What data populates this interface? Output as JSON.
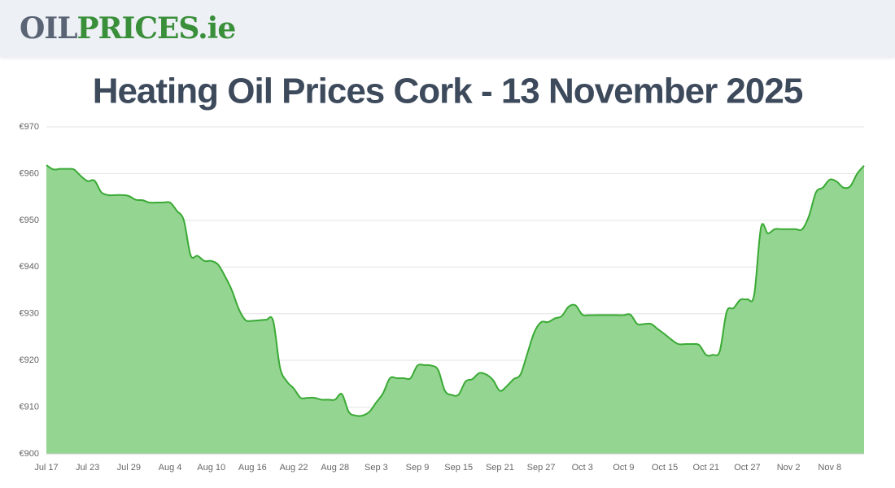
{
  "header": {
    "logo": [
      "OIL",
      "PRICES.ie"
    ]
  },
  "chart_data": {
    "type": "area",
    "title": "Heating Oil Prices Cork - 13 November 2025",
    "categories": [
      "Jul 17",
      null,
      null,
      null,
      null,
      null,
      "Jul 23",
      null,
      null,
      null,
      null,
      null,
      "Jul 29",
      null,
      null,
      null,
      null,
      null,
      "Aug 4",
      null,
      null,
      null,
      null,
      null,
      "Aug 10",
      null,
      null,
      null,
      null,
      null,
      "Aug 16",
      null,
      null,
      null,
      null,
      null,
      "Aug 22",
      null,
      null,
      null,
      null,
      null,
      "Aug 28",
      null,
      null,
      null,
      null,
      null,
      "Sep 3",
      null,
      null,
      null,
      null,
      null,
      "Sep 9",
      null,
      null,
      null,
      null,
      null,
      "Sep 15",
      null,
      null,
      null,
      null,
      null,
      "Sep 21",
      null,
      null,
      null,
      null,
      null,
      "Sep 27",
      null,
      null,
      null,
      null,
      null,
      "Oct 3",
      null,
      null,
      null,
      null,
      null,
      "Oct 9",
      null,
      null,
      null,
      null,
      null,
      "Oct 15",
      null,
      null,
      null,
      null,
      null,
      "Oct 21",
      null,
      null,
      null,
      null,
      null,
      "Oct 27",
      null,
      null,
      null,
      null,
      null,
      "Nov 2",
      null,
      null,
      null,
      null,
      null,
      "Nov 8",
      null,
      null,
      null,
      null,
      null
    ],
    "values": [
      961.8,
      960.9,
      961,
      961,
      960.9,
      959.5,
      958.4,
      958.5,
      956,
      955.4,
      955.4,
      955.4,
      955.2,
      954.4,
      954.3,
      953.8,
      953.8,
      953.8,
      953.8,
      952,
      950,
      942.5,
      942.4,
      941.3,
      941.3,
      940.5,
      938,
      935,
      931,
      928.6,
      928.5,
      928.6,
      928.7,
      928.5,
      918.5,
      915.5,
      914,
      912,
      912,
      912,
      911.6,
      911.6,
      911.6,
      912.8,
      909,
      908.2,
      908.2,
      909,
      911,
      913,
      916.2,
      916.2,
      916.2,
      916.2,
      918.9,
      919,
      918.9,
      918,
      913.5,
      912.6,
      912.7,
      915.5,
      916,
      917.3,
      917,
      915.8,
      913.5,
      914.5,
      916,
      917,
      921.5,
      926,
      928.2,
      928.2,
      929,
      929.5,
      931.5,
      931.8,
      929.8,
      929.7,
      929.7,
      929.7,
      929.7,
      929.7,
      929.7,
      929.8,
      927.8,
      927.8,
      927.8,
      926.7,
      925.6,
      924.4,
      923.5,
      923.5,
      923.5,
      923.3,
      921.2,
      921.2,
      922,
      930.4,
      931.2,
      933,
      933.1,
      934,
      948.5,
      947.2,
      948.1,
      948.1,
      948.1,
      948.1,
      948.1,
      951,
      956,
      957,
      958.7,
      958.3,
      957,
      957.3,
      960,
      961.7
    ],
    "color": "#3aaa35",
    "fill_color": "#93d591",
    "ylim": [
      900,
      970
    ],
    "yticks": [
      {
        "value": 900,
        "label": "€900"
      },
      {
        "value": 910,
        "label": "€910"
      },
      {
        "value": 920,
        "label": "€920"
      },
      {
        "value": 930,
        "label": "€930"
      },
      {
        "value": 940,
        "label": "€940"
      },
      {
        "value": 950,
        "label": "€950"
      },
      {
        "value": 960,
        "label": "€960"
      },
      {
        "value": 970,
        "label": "€970"
      }
    ],
    "grid": true
  }
}
